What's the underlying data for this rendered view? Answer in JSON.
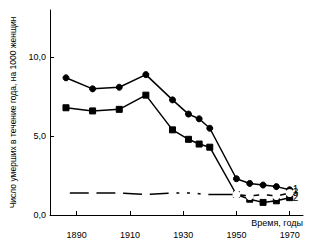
{
  "chart_data": {
    "type": "line",
    "x_label": "Время, годы",
    "y_label": "Число умерших в течение года, на 1000 женщин",
    "xlim": [
      1880,
      1975
    ],
    "xticks": [
      1890,
      1910,
      1930,
      1950,
      1970
    ],
    "ylim": [
      0,
      13
    ],
    "yticks": [
      {
        "value": 0,
        "label": "0,0"
      },
      {
        "value": 5,
        "label": "5,0"
      },
      {
        "value": 10,
        "label": "10,0"
      }
    ],
    "grid": false,
    "series": [
      {
        "name": "1",
        "color": "#000000",
        "marker": "circle",
        "x": [
          1886,
          1896,
          1906,
          1916,
          1926,
          1932,
          1936,
          1940,
          1950,
          1955,
          1960,
          1965,
          1970
        ],
        "values": [
          8.7,
          8.0,
          8.1,
          8.9,
          7.3,
          6.4,
          6.1,
          5.5,
          2.3,
          2.0,
          1.9,
          1.8,
          1.6
        ]
      },
      {
        "name": "2",
        "color": "#000000",
        "marker": "square",
        "x": [
          1886,
          1896,
          1906,
          1916,
          1926,
          1932,
          1936,
          1940,
          1950,
          1955,
          1960,
          1965,
          1970
        ],
        "values": [
          6.8,
          6.6,
          6.7,
          7.6,
          5.4,
          4.8,
          4.5,
          4.3,
          1.3,
          1.0,
          0.8,
          0.9,
          1.1
        ]
      },
      {
        "name": "3",
        "color": "#000000",
        "marker": "open_circle",
        "x": [
          1886,
          1896,
          1906,
          1916,
          1926,
          1930,
          1934,
          1938,
          1950,
          1955,
          1960,
          1965,
          1970
        ],
        "values": [
          1.4,
          1.4,
          1.4,
          1.3,
          1.4,
          1.4,
          1.4,
          1.3,
          1.3,
          1.2,
          1.3,
          1.2,
          1.4
        ]
      }
    ]
  }
}
